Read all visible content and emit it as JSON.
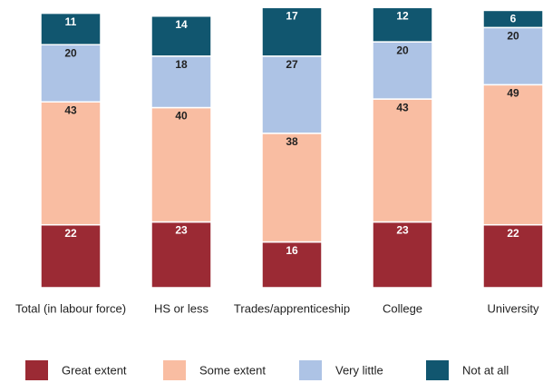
{
  "chart_data": {
    "type": "stacked_bar",
    "categories": [
      "Total (in labour force)",
      "HS or less",
      "Trades/apprenticeship",
      "College",
      "University"
    ],
    "series": [
      {
        "name": "Great extent",
        "color": "#9b2a34",
        "values": [
          22,
          23,
          16,
          23,
          22
        ]
      },
      {
        "name": "Some extent",
        "color": "#f9bda2",
        "values": [
          43,
          40,
          38,
          43,
          49
        ]
      },
      {
        "name": "Very little",
        "color": "#adc3e5",
        "values": [
          20,
          18,
          27,
          20,
          20
        ]
      },
      {
        "name": "Not at all",
        "color": "#11566f",
        "values": [
          11,
          14,
          17,
          12,
          6
        ]
      }
    ],
    "ylim": [
      0,
      100
    ],
    "legend": "bottom"
  }
}
